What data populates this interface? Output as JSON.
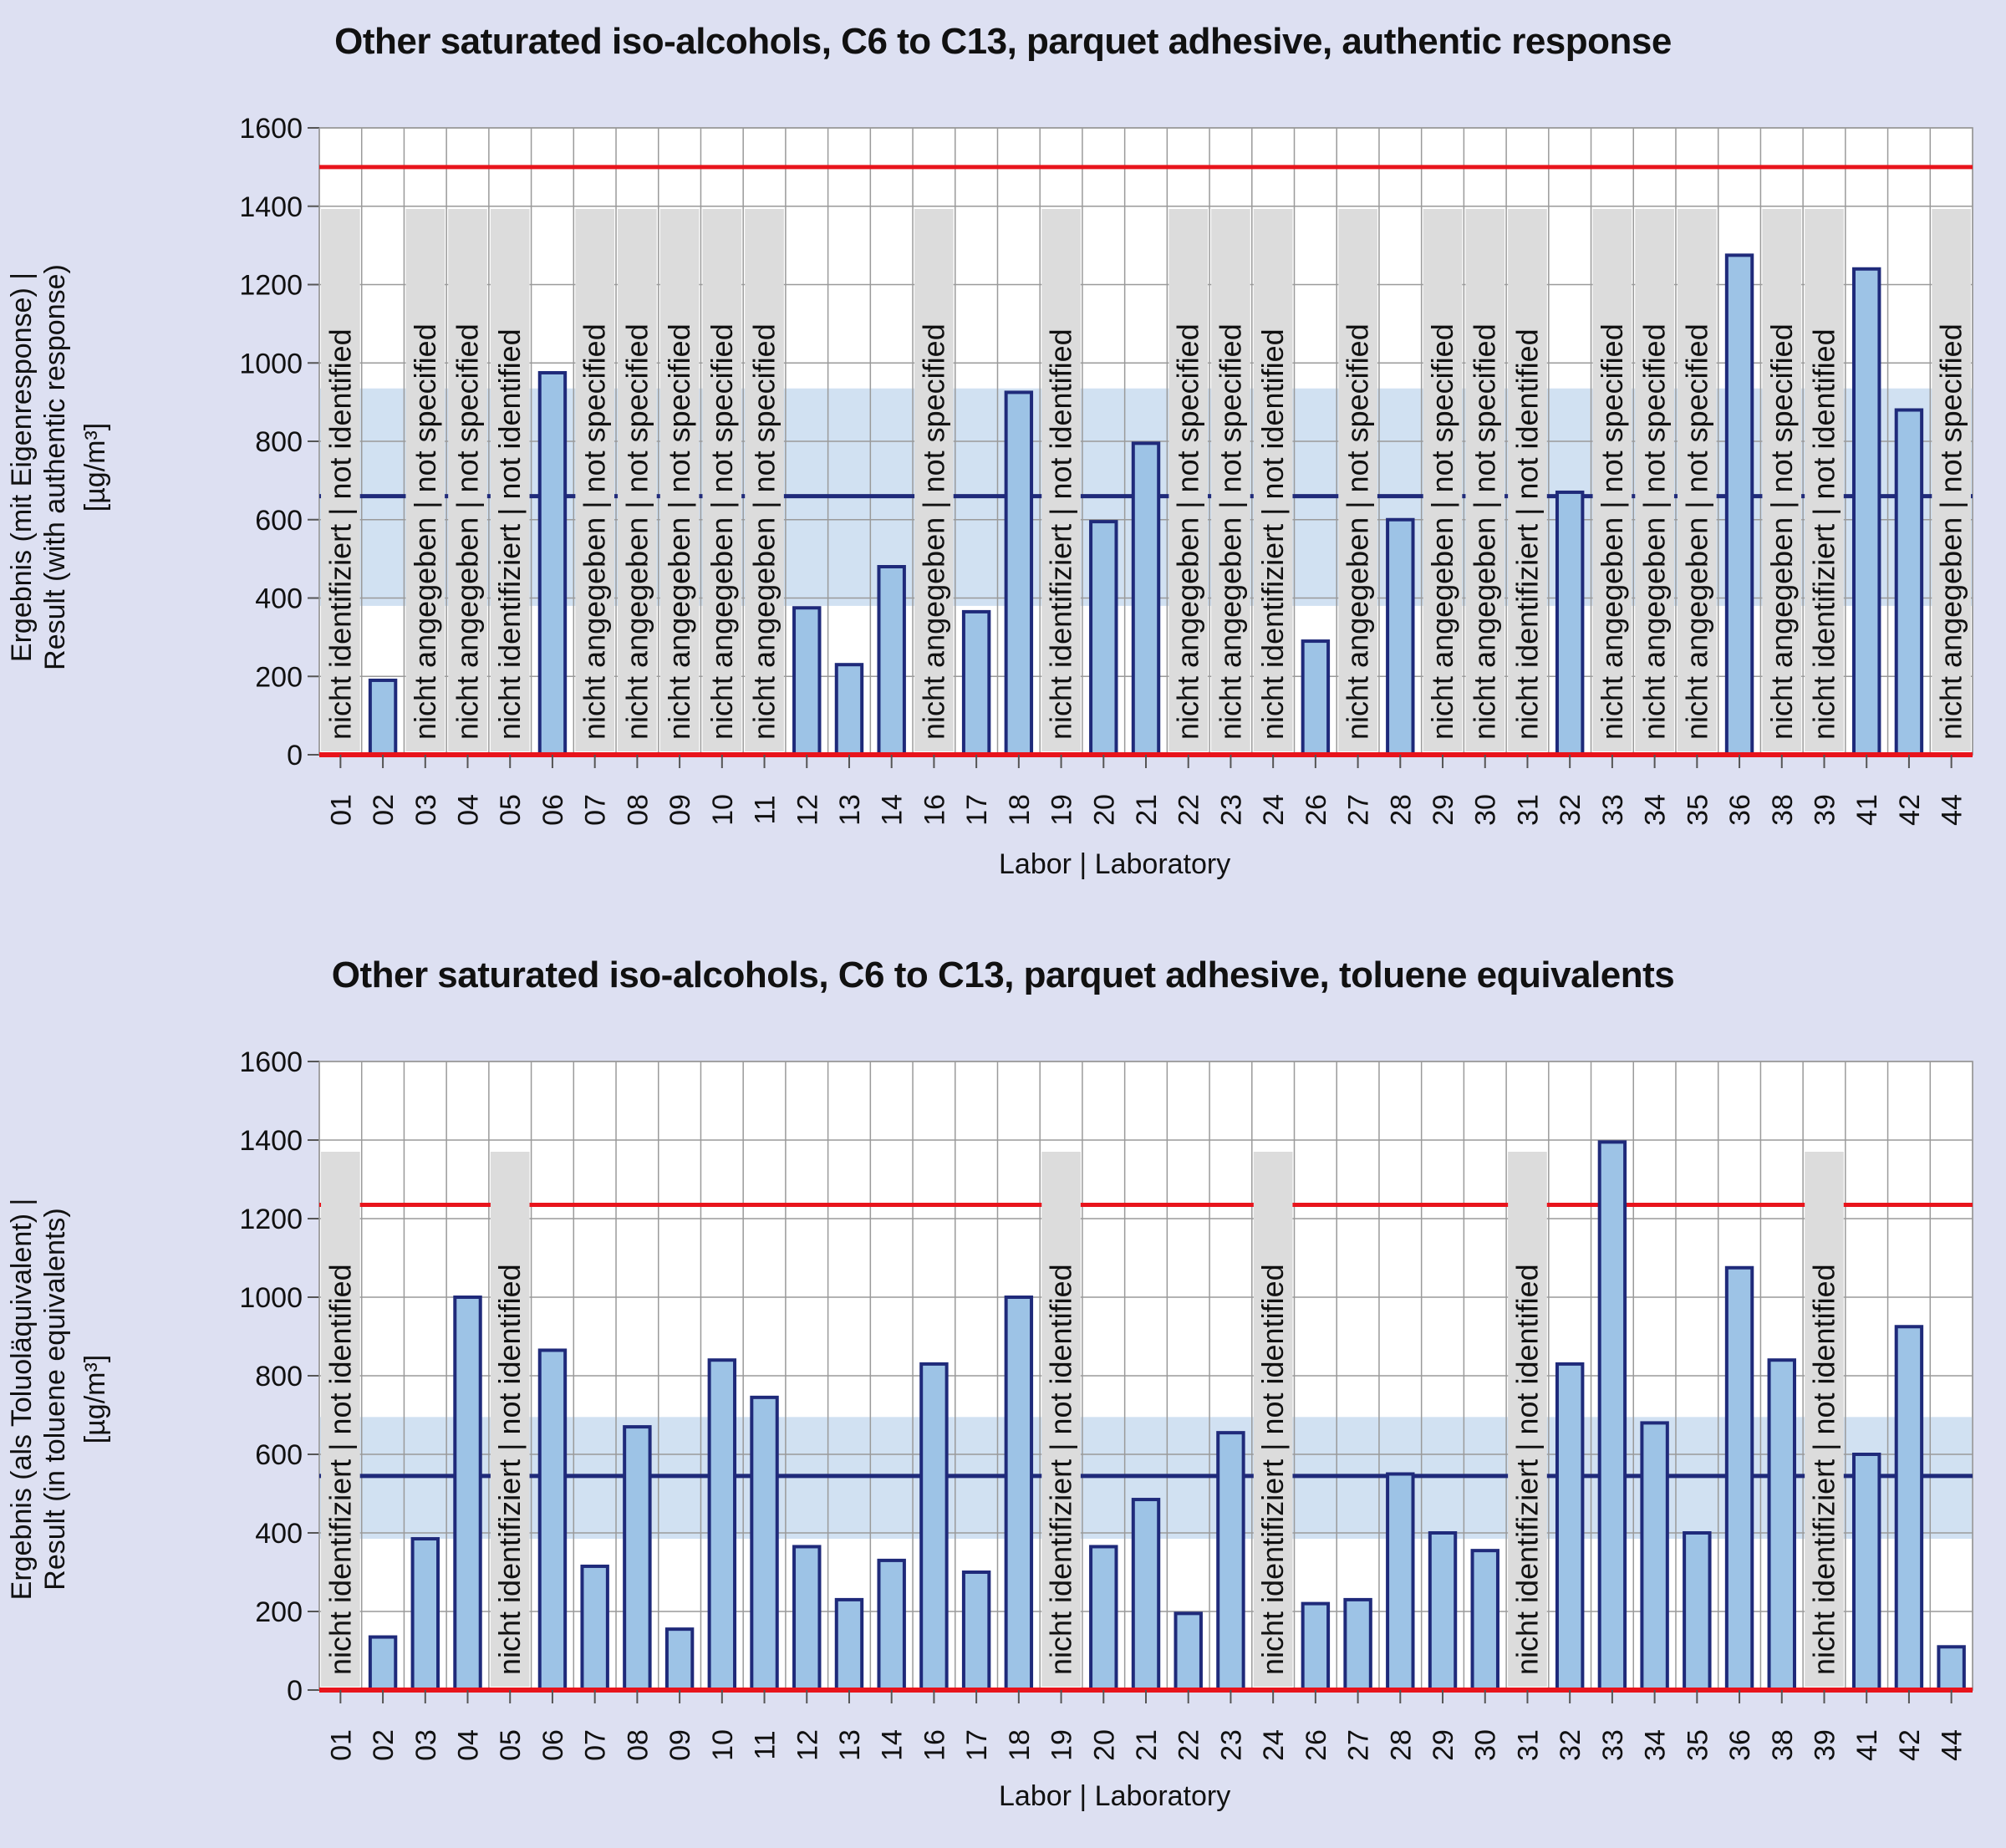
{
  "chart_data": [
    {
      "type": "bar",
      "title": "Other saturated iso-alcohols, C6 to C13, parquet adhesive, authentic response",
      "ylabel_lines": [
        "Ergebnis (mit Eigenresponse) |",
        "Result (with authentic response)",
        "[µg/m³]"
      ],
      "xlabel": "Labor | Laboratory",
      "ylim": [
        0,
        1600
      ],
      "yticks": [
        0,
        200,
        400,
        600,
        800,
        1000,
        1200,
        1400,
        1600
      ],
      "grid": true,
      "reference_lines": {
        "upper_limit": 1500,
        "lower_limit": 0,
        "assigned_value": 660,
        "tolerance_band": [
          380,
          935
        ]
      },
      "categories": [
        "01",
        "02",
        "03",
        "04",
        "05",
        "06",
        "07",
        "08",
        "09",
        "10",
        "11",
        "12",
        "13",
        "14",
        "16",
        "17",
        "18",
        "19",
        "20",
        "21",
        "22",
        "23",
        "24",
        "26",
        "27",
        "28",
        "29",
        "30",
        "31",
        "32",
        "33",
        "34",
        "35",
        "36",
        "38",
        "39",
        "41",
        "42",
        "44"
      ],
      "values": [
        null,
        190,
        null,
        null,
        null,
        975,
        null,
        null,
        null,
        null,
        null,
        375,
        230,
        480,
        null,
        365,
        925,
        null,
        595,
        795,
        null,
        null,
        null,
        290,
        null,
        600,
        null,
        null,
        null,
        670,
        null,
        null,
        null,
        1275,
        null,
        null,
        1240,
        880,
        null
      ],
      "annotations": [
        "nicht identifiziert | not identified",
        null,
        "nicht angegeben | not specified",
        "nicht angegeben | not specified",
        "nicht identifiziert | not identified",
        null,
        "nicht angegeben | not specified",
        "nicht angegeben | not specified",
        "nicht angegeben | not specified",
        "nicht angegeben | not specified",
        "nicht angegeben | not specified",
        null,
        null,
        null,
        "nicht angegeben | not specified",
        null,
        null,
        "nicht identifiziert | not identified",
        null,
        null,
        "nicht angegeben | not specified",
        "nicht angegeben | not specified",
        "nicht identifiziert | not identified",
        null,
        "nicht angegeben | not specified",
        null,
        "nicht angegeben | not specified",
        "nicht angegeben | not specified",
        "nicht identifiziert | not identified",
        null,
        "nicht angegeben | not specified",
        "nicht angegeben | not specified",
        "nicht angegeben | not specified",
        null,
        "nicht angegeben | not specified",
        "nicht identifiziert | not identified",
        null,
        null,
        "nicht angegeben | not specified"
      ]
    },
    {
      "type": "bar",
      "title": "Other saturated iso-alcohols, C6 to C13, parquet adhesive, toluene equivalents",
      "ylabel_lines": [
        "Ergebnis (als Toluoläquivalent) |",
        "Result (in toluene equivalents)",
        "[µg/m³]"
      ],
      "xlabel": "Labor | Laboratory",
      "ylim": [
        0,
        1600
      ],
      "yticks": [
        0,
        200,
        400,
        600,
        800,
        1000,
        1200,
        1400,
        1600
      ],
      "grid": true,
      "reference_lines": {
        "upper_limit": 1235,
        "lower_limit": 0,
        "assigned_value": 545,
        "tolerance_band": [
          385,
          695
        ]
      },
      "categories": [
        "01",
        "02",
        "03",
        "04",
        "05",
        "06",
        "07",
        "08",
        "09",
        "10",
        "11",
        "12",
        "13",
        "14",
        "16",
        "17",
        "18",
        "19",
        "20",
        "21",
        "22",
        "23",
        "24",
        "26",
        "27",
        "28",
        "29",
        "30",
        "31",
        "32",
        "33",
        "34",
        "35",
        "36",
        "38",
        "39",
        "41",
        "42",
        "44"
      ],
      "values": [
        null,
        135,
        385,
        1000,
        null,
        865,
        315,
        670,
        155,
        840,
        745,
        365,
        230,
        330,
        830,
        300,
        1000,
        null,
        365,
        485,
        195,
        655,
        null,
        220,
        230,
        550,
        400,
        355,
        null,
        830,
        1395,
        680,
        400,
        1075,
        840,
        null,
        600,
        925,
        110
      ],
      "annotations": [
        "nicht identifiziert | not identified",
        null,
        null,
        null,
        "nicht identifiziert | not identified",
        null,
        null,
        null,
        null,
        null,
        null,
        null,
        null,
        null,
        null,
        null,
        null,
        "nicht identifiziert | not identified",
        null,
        null,
        null,
        null,
        "nicht identifiziert | not identified",
        null,
        null,
        null,
        null,
        null,
        "nicht identifiziert | not identified",
        null,
        null,
        null,
        null,
        null,
        null,
        "nicht identifiziert | not identified",
        null,
        null,
        null
      ]
    }
  ],
  "colors": {
    "background": "#dde0f2",
    "plot_bg": "#ffffff",
    "grid": "#9a9a9a",
    "bar_fill": "#9dc3e6",
    "bar_stroke": "#1f2a7a",
    "limit_line": "#e8141c",
    "mean_line": "#1f2a7a",
    "band": "#c9dcf0",
    "annotation_bg": "#dcdcdc"
  }
}
